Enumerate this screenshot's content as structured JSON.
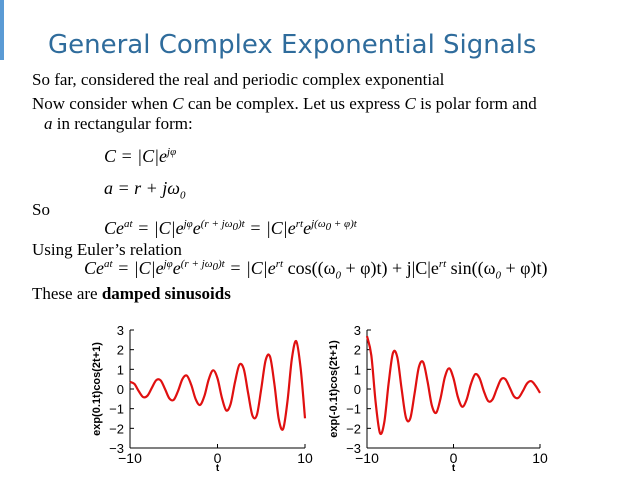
{
  "title": "General Complex Exponential Signals",
  "lines": [
    [
      "So far, considered the real and periodic complex exponential"
    ],
    [
      "Now consider when ",
      "C",
      " can be complex.  Let us express ",
      "C",
      " is polar form and"
    ],
    [
      "a",
      " in rectangular form:"
    ],
    [
      "So"
    ],
    [
      "Using Euler’s relation"
    ],
    [
      "These are ",
      "damped sinusoids"
    ]
  ],
  "equations": [
    [
      "C = |C|e",
      "jφ"
    ],
    [
      "a = r + jω",
      "0"
    ],
    [
      "Ce",
      "at",
      " = |C|e",
      "jφ",
      "e",
      "(r + jω",
      "0",
      ")t",
      " = |C|e",
      "rt",
      "e",
      "j(ω",
      "0",
      " + φ)t"
    ],
    [
      "Ce",
      "at",
      " = |C|e",
      "jφ",
      "e",
      "(r + jω",
      "0",
      ")t",
      " = |C|e",
      "rt",
      " cos((ω",
      "0",
      " + φ)t) + j|C|e",
      "rt",
      " sin((ω",
      "0",
      " + φ)t)"
    ]
  ],
  "chart_data": [
    {
      "type": "line",
      "ylabel": "exp(0.1t)cos(2t+1)",
      "xlabel": "t",
      "color": "#e01010",
      "x": [
        -10,
        -9.5,
        -9,
        -8.5,
        -8,
        -7.5,
        -7,
        -6.5,
        -6,
        -5.5,
        -5,
        -4.5,
        -4,
        -3.5,
        -3,
        -2.5,
        -2,
        -1.5,
        -1,
        -0.5,
        0,
        0.5,
        1,
        1.5,
        2,
        2.5,
        3,
        3.5,
        4,
        4.5,
        5,
        5.5,
        6,
        6.5,
        7,
        7.5,
        8,
        8.5,
        9,
        9.5,
        10
      ],
      "values": [
        0.36,
        0.26,
        -0.11,
        -0.41,
        -0.34,
        0.06,
        0.45,
        0.44,
        0.0,
        -0.48,
        -0.55,
        -0.09,
        0.51,
        0.68,
        0.21,
        -0.51,
        -0.81,
        -0.36,
        0.49,
        0.95,
        0.54,
        -0.44,
        -1.09,
        -0.76,
        0.35,
        1.23,
        1.02,
        -0.21,
        -1.36,
        -1.32,
        0.01,
        1.46,
        1.65,
        0.26,
        -1.53,
        -2.03,
        -0.61,
        1.54,
        2.43,
        1.06,
        -1.49
      ],
      "xlim": [
        -10,
        10
      ],
      "ylim": [
        -3,
        3
      ],
      "xticks": [
        {
          "value": -10,
          "label": "−10"
        },
        0,
        10
      ],
      "yticks": [
        {
          "value": -3,
          "label": "−3"
        },
        {
          "value": -2,
          "label": "−2"
        },
        {
          "value": -1,
          "label": "−1"
        },
        0,
        1,
        2,
        3
      ]
    },
    {
      "type": "line",
      "ylabel": "exp(-0.1t)cos(2t+1)",
      "xlabel": "t",
      "color": "#e01010",
      "x": [
        -10,
        -9.5,
        -9,
        -8.5,
        -8,
        -7.5,
        -7,
        -6.5,
        -6,
        -5.5,
        -5,
        -4.5,
        -4,
        -3.5,
        -3,
        -2.5,
        -2,
        -1.5,
        -1,
        -0.5,
        0,
        0.5,
        1,
        1.5,
        2,
        2.5,
        3,
        3.5,
        4,
        4.5,
        5,
        5.5,
        6,
        6.5,
        7,
        7.5,
        8,
        8.5,
        9,
        9.5,
        10
      ],
      "values": [
        2.69,
        1.71,
        -0.68,
        -2.24,
        -1.69,
        0.29,
        1.83,
        1.62,
        0.01,
        -1.45,
        -1.5,
        -0.23,
        1.12,
        1.36,
        0.38,
        -0.84,
        -1.21,
        -0.48,
        0.6,
        1.05,
        0.54,
        -0.4,
        -0.9,
        -0.56,
        0.23,
        0.75,
        0.56,
        -0.1,
        -0.61,
        -0.54,
        0.0,
        0.49,
        0.5,
        0.07,
        -0.38,
        -0.45,
        -0.12,
        0.28,
        0.4,
        0.16,
        -0.2
      ],
      "xlim": [
        -10,
        10
      ],
      "ylim": [
        -3,
        3
      ],
      "xticks": [
        {
          "value": -10,
          "label": "−10"
        },
        0,
        10
      ],
      "yticks": [
        {
          "value": -3,
          "label": "−3"
        },
        {
          "value": -2,
          "label": "−2"
        },
        {
          "value": -1,
          "label": "−1"
        },
        0,
        1,
        2,
        3
      ]
    }
  ]
}
